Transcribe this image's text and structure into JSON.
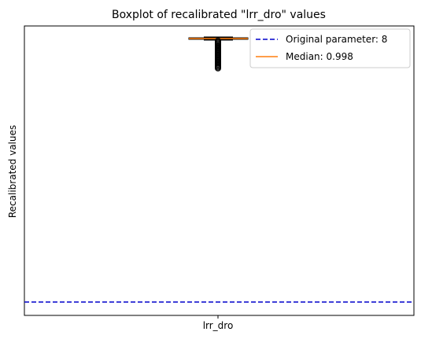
{
  "chart_data": {
    "type": "boxplot",
    "title": "Boxplot of recalibrated \"lrr_dro\" values",
    "xlabel": "",
    "ylabel": "Recalibrated values",
    "categories": [
      "lrr_dro"
    ],
    "y_ticks_visible": false,
    "grid": false,
    "legend_position": "top-right",
    "reference_line": {
      "label": "Original parameter: 8",
      "color": "#0000cc",
      "style": "dashed"
    },
    "median_legend": {
      "label": "Median: 0.998",
      "color": "#ff7f0e"
    },
    "box_color": "#000000",
    "median_color": "#ff7f0e",
    "legend_texts": [
      "Original parameter: 8",
      "Median: 0.998"
    ]
  }
}
